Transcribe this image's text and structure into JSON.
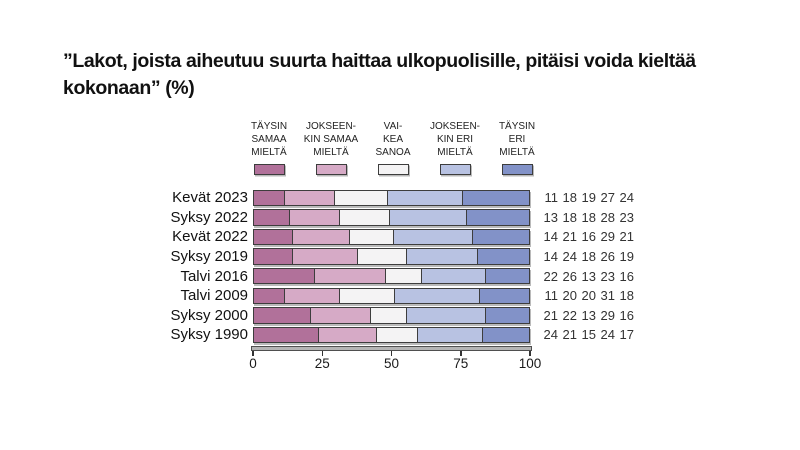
{
  "title_lines": [
    "”Lakot, joista aiheutuu suurta haittaa ulkopuolisille, pitäisi voida kieltää",
    "kokonaan” (%)"
  ],
  "chart_data": {
    "type": "bar",
    "stacked": true,
    "orientation": "horizontal",
    "title": "”Lakot, joista aiheutuu suurta haittaa ulkopuolisille, pitäisi voida kieltää kokonaan” (%)",
    "categories": [
      "Kevät 2023",
      "Syksy 2022",
      "Kevät 2022",
      "Syksy 2019",
      "Talvi 2016",
      "Talvi 2009",
      "Syksy 2000",
      "Syksy 1990"
    ],
    "series": [
      {
        "name": "Täysin samaa mieltä",
        "legend_lines": "TÄYSIN\nSAMAA\nMIELTÄ",
        "color": "#b1719a",
        "values": [
          11,
          13,
          14,
          14,
          22,
          11,
          21,
          24
        ]
      },
      {
        "name": "Jokseenkin samaa mieltä",
        "legend_lines": "JOKSEEN-\nKIN SAMAA\nMIELTÄ",
        "color": "#d6aac6",
        "values": [
          18,
          18,
          21,
          24,
          26,
          20,
          22,
          21
        ]
      },
      {
        "name": "Vaikea sanoa",
        "legend_lines": "VAI-\nKEA\nSANOA",
        "color": "#f4f3f4",
        "values": [
          19,
          18,
          16,
          18,
          13,
          20,
          13,
          15
        ]
      },
      {
        "name": "Jokseenkin eri mieltä",
        "legend_lines": "JOKSEEN-\nKIN ERI\nMIELTÄ",
        "color": "#b8c2e2",
        "values": [
          27,
          28,
          29,
          26,
          23,
          31,
          29,
          24
        ]
      },
      {
        "name": "Täysin eri mieltä",
        "legend_lines": "TÄYSIN\nERI\nMIELTÄ",
        "color": "#8292c8",
        "values": [
          24,
          23,
          21,
          19,
          16,
          18,
          16,
          17
        ]
      }
    ],
    "value_labels": [
      [
        11,
        18,
        19,
        27,
        24
      ],
      [
        13,
        18,
        18,
        28,
        23
      ],
      [
        14,
        21,
        16,
        29,
        21
      ],
      [
        14,
        24,
        18,
        26,
        19
      ],
      [
        22,
        26,
        13,
        23,
        16
      ],
      [
        11,
        20,
        20,
        31,
        18
      ],
      [
        21,
        22,
        13,
        29,
        16
      ],
      [
        24,
        21,
        15,
        24,
        17
      ]
    ],
    "x_ticks": [
      0,
      25,
      50,
      75,
      100
    ],
    "xlim": [
      0,
      100
    ],
    "grid": false,
    "legend_position": "top"
  },
  "colors": {
    "segment_border": "#3d3d3d",
    "axis_strip": "#b5b5b5",
    "background": "#ffffff"
  }
}
